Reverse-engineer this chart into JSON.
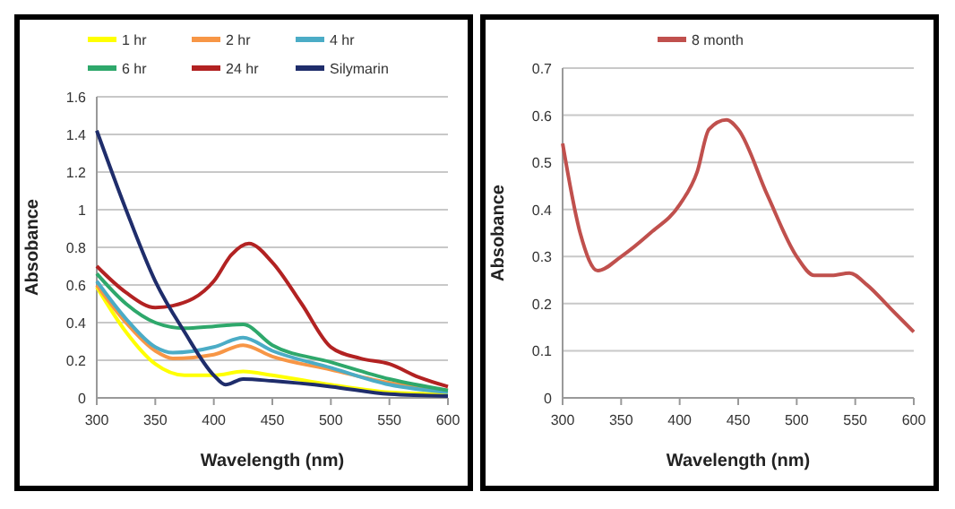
{
  "chart_data": [
    {
      "type": "line",
      "xlabel": "Wavelength (nm)",
      "ylabel": "Absobance",
      "xlim": [
        300,
        600
      ],
      "xticks": [
        300,
        350,
        400,
        450,
        500,
        550,
        600
      ],
      "ylim": [
        0,
        1.6
      ],
      "yticks": [
        0,
        0.2,
        0.4,
        0.6,
        0.8,
        1,
        1.2,
        1.4,
        1.6
      ],
      "grid": "y",
      "legend": "top",
      "line_style": "solid",
      "marker": "none",
      "series": [
        {
          "name": "1 hr",
          "color": "#ffff00",
          "x": [
            300,
            325,
            350,
            375,
            400,
            425,
            450,
            500,
            550,
            600
          ],
          "values": [
            0.59,
            0.35,
            0.18,
            0.12,
            0.12,
            0.14,
            0.12,
            0.07,
            0.03,
            0.02
          ]
        },
        {
          "name": "2 hr",
          "color": "#f79646",
          "x": [
            300,
            325,
            350,
            365,
            400,
            425,
            450,
            500,
            550,
            600
          ],
          "values": [
            0.6,
            0.4,
            0.25,
            0.21,
            0.23,
            0.28,
            0.22,
            0.15,
            0.08,
            0.04
          ]
        },
        {
          "name": "4 hr",
          "color": "#4bacc6",
          "x": [
            300,
            325,
            350,
            365,
            400,
            425,
            450,
            500,
            550,
            600
          ],
          "values": [
            0.62,
            0.42,
            0.27,
            0.24,
            0.27,
            0.32,
            0.25,
            0.16,
            0.07,
            0.03
          ]
        },
        {
          "name": "6 hr",
          "color": "#2ea86b",
          "x": [
            300,
            325,
            350,
            375,
            400,
            425,
            450,
            500,
            550,
            600
          ],
          "values": [
            0.66,
            0.5,
            0.4,
            0.37,
            0.38,
            0.39,
            0.28,
            0.19,
            0.1,
            0.04
          ]
        },
        {
          "name": "24 hr",
          "color": "#b22222",
          "x": [
            300,
            325,
            350,
            365,
            400,
            415,
            430,
            450,
            475,
            500,
            525,
            550,
            575,
            600
          ],
          "values": [
            0.7,
            0.56,
            0.48,
            0.49,
            0.62,
            0.76,
            0.82,
            0.72,
            0.5,
            0.27,
            0.21,
            0.18,
            0.11,
            0.06
          ]
        },
        {
          "name": "Silymarin",
          "color": "#1f2d6b",
          "x": [
            300,
            325,
            350,
            375,
            400,
            410,
            425,
            450,
            500,
            550,
            600
          ],
          "values": [
            1.42,
            1,
            0.62,
            0.35,
            0.12,
            0.07,
            0.1,
            0.09,
            0.06,
            0.02,
            0.01
          ]
        }
      ]
    },
    {
      "type": "line",
      "xlabel": "Wavelength (nm)",
      "ylabel": "Absobance",
      "xlim": [
        300,
        600
      ],
      "xticks": [
        300,
        350,
        400,
        450,
        500,
        550,
        600
      ],
      "ylim": [
        0,
        0.7
      ],
      "yticks": [
        0,
        0.1,
        0.2,
        0.3,
        0.4,
        0.5,
        0.6,
        0.7
      ],
      "grid": "y",
      "legend": "top",
      "line_style": "solid",
      "marker": "none",
      "series": [
        {
          "name": "8 month",
          "color": "#c0504d",
          "x": [
            300,
            315,
            330,
            350,
            375,
            400,
            415,
            425,
            440,
            450,
            475,
            500,
            515,
            530,
            545,
            560,
            580,
            600
          ],
          "values": [
            0.54,
            0.35,
            0.27,
            0.3,
            0.35,
            0.41,
            0.48,
            0.57,
            0.59,
            0.57,
            0.43,
            0.3,
            0.26,
            0.26,
            0.265,
            0.24,
            0.19,
            0.14
          ]
        }
      ]
    }
  ]
}
